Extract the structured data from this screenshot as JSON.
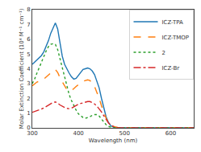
{
  "chart_data": {
    "type": "line",
    "xlabel": "Wavelength (nm)",
    "ylabel": "Molar Extinction Coefficient (10⁴ M⁻¹ cm⁻¹)",
    "xlim": [
      300,
      650
    ],
    "ylim": [
      0,
      8
    ],
    "xticks": [
      300,
      400,
      500,
      600
    ],
    "yticks": [
      0,
      1,
      2,
      3,
      4,
      5,
      6,
      7,
      8
    ],
    "grid": false,
    "legend": "upper right",
    "x": [
      300,
      305,
      310,
      315,
      320,
      325,
      330,
      335,
      340,
      345,
      350,
      355,
      360,
      365,
      370,
      375,
      380,
      385,
      390,
      395,
      400,
      405,
      410,
      415,
      420,
      425,
      430,
      435,
      440,
      445,
      450,
      455,
      460,
      465,
      470,
      475,
      480,
      485,
      490,
      495,
      500,
      510,
      520,
      530,
      540,
      550,
      600,
      650
    ],
    "series": [
      {
        "name": "ICZ-TPA",
        "line_style": "solid",
        "values": [
          4.3,
          4.45,
          4.6,
          4.75,
          4.9,
          5.15,
          5.5,
          5.9,
          6.4,
          6.8,
          7.1,
          6.7,
          5.7,
          4.85,
          4.3,
          3.95,
          3.7,
          3.45,
          3.3,
          3.35,
          3.55,
          3.75,
          3.95,
          4.0,
          4.05,
          4.0,
          3.85,
          3.6,
          3.2,
          2.7,
          2.0,
          1.3,
          0.75,
          0.38,
          0.15,
          0.06,
          0.025,
          0.01,
          0.005,
          0.003,
          0.001,
          0.001,
          0.001,
          0.001,
          0.001,
          0.001,
          0.001,
          0.001
        ]
      },
      {
        "name": "ICZ-TMOP",
        "line_style": "dashed",
        "values": [
          2.85,
          3.0,
          3.1,
          3.15,
          3.2,
          3.3,
          3.45,
          3.6,
          3.7,
          3.85,
          3.95,
          3.75,
          3.4,
          3.1,
          2.85,
          2.6,
          2.5,
          2.55,
          2.65,
          2.8,
          2.95,
          3.05,
          3.15,
          3.2,
          3.25,
          3.2,
          3.05,
          2.8,
          2.45,
          2.0,
          1.5,
          1.05,
          0.65,
          0.38,
          0.2,
          0.1,
          0.05,
          0.025,
          0.01,
          0.005,
          0.003,
          0.002,
          0.001,
          0.001,
          0.001,
          0.001,
          0.001,
          0.001
        ]
      },
      {
        "name": "2",
        "line_style": "dotted",
        "values": [
          3.0,
          3.3,
          3.7,
          4.1,
          4.5,
          4.85,
          5.2,
          5.5,
          5.65,
          5.7,
          5.65,
          5.3,
          4.7,
          4.0,
          3.35,
          2.75,
          2.25,
          1.85,
          1.5,
          1.2,
          0.95,
          0.8,
          0.7,
          0.65,
          0.7,
          0.75,
          0.85,
          0.9,
          0.9,
          0.8,
          0.6,
          0.4,
          0.22,
          0.1,
          0.04,
          0.015,
          0.005,
          0.002,
          0.001,
          0.001,
          0.001,
          0.001,
          0.001,
          0.001,
          0.001,
          0.001,
          0.001,
          0.001
        ]
      },
      {
        "name": "ICZ-Br",
        "line_style": "dashdot",
        "values": [
          1.05,
          1.1,
          1.15,
          1.2,
          1.28,
          1.35,
          1.45,
          1.55,
          1.65,
          1.72,
          1.75,
          1.68,
          1.55,
          1.45,
          1.38,
          1.32,
          1.3,
          1.33,
          1.42,
          1.52,
          1.6,
          1.65,
          1.7,
          1.75,
          1.78,
          1.78,
          1.72,
          1.62,
          1.48,
          1.3,
          1.08,
          0.82,
          0.56,
          0.34,
          0.18,
          0.09,
          0.04,
          0.015,
          0.005,
          0.002,
          0.001,
          0.001,
          0.001,
          0.001,
          0.001,
          0.001,
          0.001,
          0.001
        ]
      }
    ]
  }
}
